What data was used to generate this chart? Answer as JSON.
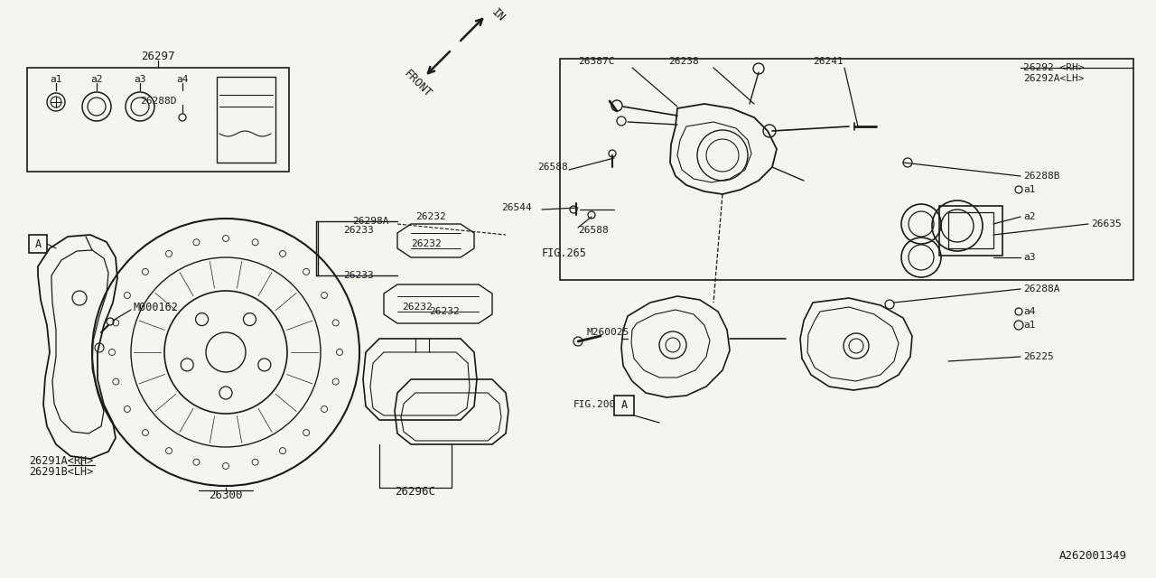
{
  "bg_color": "#f5f5f0",
  "line_color": "#1a1a1a",
  "fig_number": "A262001349",
  "parts": {
    "top_box_label": "26297",
    "a1": "a1",
    "a2": "a2",
    "a3": "a3",
    "a4": "a4",
    "26288D": "26288D",
    "rotor_label": "26300",
    "dust_shield_rh": "26291A<RH>",
    "dust_shield_lh": "26291B<LH>",
    "m000162": "M000162",
    "pad_set_label": "26296C",
    "caliper_rh": "26292 <RH>",
    "caliper_lh": "26292A<LH>",
    "bracket": "26225",
    "bleeder": "26588",
    "bolt_26544": "26544",
    "bolt_26241": "26241",
    "bolt_26238": "26238",
    "bolt_26387c": "26387C",
    "fig265": "FIG.265",
    "fig200": "FIG.200",
    "m260025": "M260025",
    "part_26298a": "26298A",
    "part_26232": "26232",
    "part_26233": "26233",
    "part_26635": "26635",
    "part_26288b": "26288B",
    "part_26288a": "26288A",
    "in_label": "IN",
    "front_label": "FRONT"
  }
}
